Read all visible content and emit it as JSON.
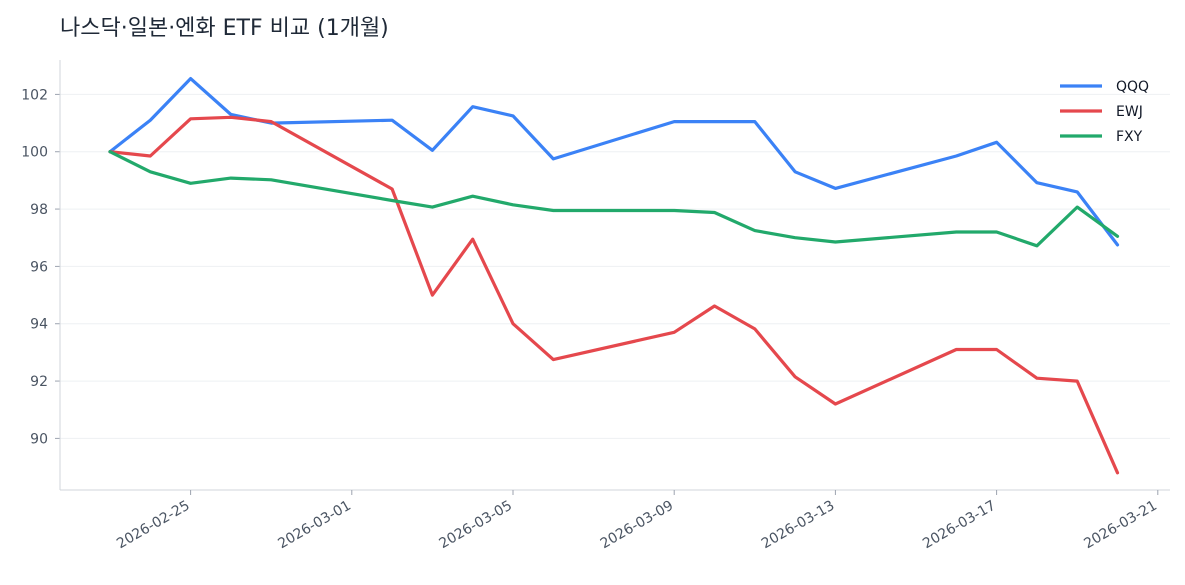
{
  "chart_data": {
    "type": "line",
    "title": "나스닥·일본·엔화 ETF 비교 (1개월)",
    "xlabel": "",
    "ylabel": "",
    "ylim": [
      88.2,
      103.2
    ],
    "yticks": [
      90,
      92,
      94,
      96,
      98,
      100,
      102
    ],
    "xticks": [
      "2026-02-25",
      "2026-03-01",
      "2026-03-05",
      "2026-03-09",
      "2026-03-13",
      "2026-03-17",
      "2026-03-21"
    ],
    "grid": "horizontal",
    "legend": "top-right",
    "dates": [
      "2026-02-23",
      "2026-02-24",
      "2026-02-25",
      "2026-02-26",
      "2026-02-27",
      "2026-03-02",
      "2026-03-03",
      "2026-03-04",
      "2026-03-05",
      "2026-03-06",
      "2026-03-09",
      "2026-03-10",
      "2026-03-11",
      "2026-03-12",
      "2026-03-13",
      "2026-03-16",
      "2026-03-17",
      "2026-03-18",
      "2026-03-19",
      "2026-03-20"
    ],
    "series": [
      {
        "name": "QQQ",
        "color": "#3b82f6",
        "values": [
          100.0,
          101.1,
          102.55,
          101.3,
          101.0,
          101.1,
          100.05,
          101.57,
          101.25,
          99.75,
          101.05,
          101.05,
          101.05,
          99.3,
          98.72,
          99.85,
          100.33,
          98.92,
          98.6,
          96.75
        ]
      },
      {
        "name": "EWJ",
        "color": "#e5484d",
        "values": [
          100.0,
          99.85,
          101.15,
          101.2,
          101.05,
          98.7,
          95.0,
          96.95,
          94.0,
          92.75,
          93.7,
          94.62,
          93.82,
          92.15,
          91.2,
          93.1,
          93.1,
          92.1,
          92.0,
          88.8
        ]
      },
      {
        "name": "FXY",
        "color": "#22a96b",
        "values": [
          100.0,
          99.3,
          98.9,
          99.08,
          99.02,
          98.3,
          98.07,
          98.45,
          98.15,
          97.95,
          97.95,
          97.88,
          97.25,
          97.0,
          96.85,
          97.2,
          97.2,
          96.72,
          98.07,
          97.05
        ]
      }
    ]
  }
}
